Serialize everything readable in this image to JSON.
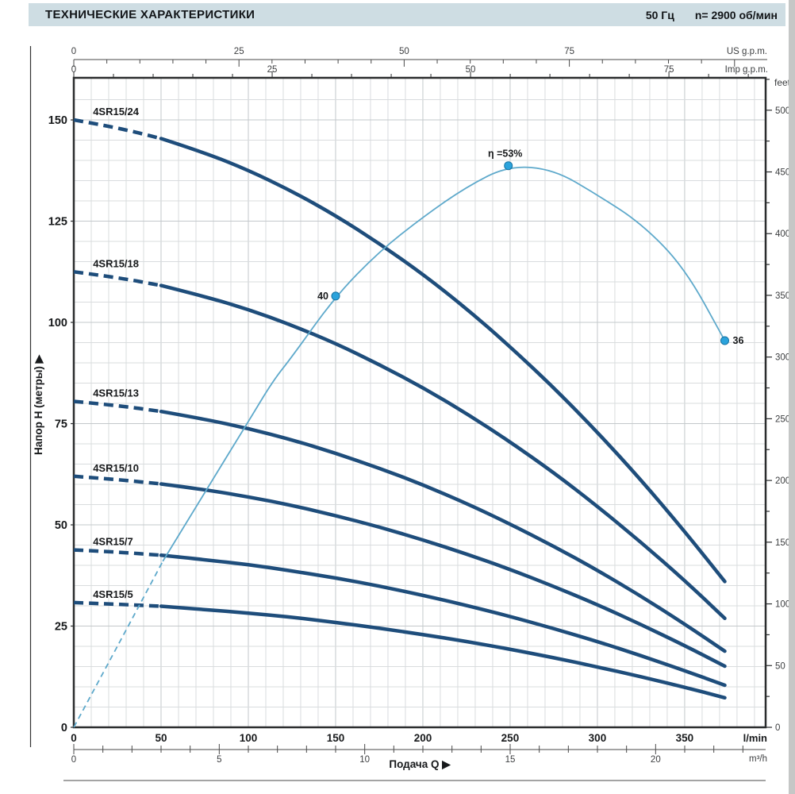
{
  "header": {
    "title": "ТЕХНИЧЕСКИЕ ХАРАКТЕРИСТИКИ",
    "frequency": "50 Гц",
    "speed": "n= 2900 об/мин"
  },
  "chart_data": {
    "type": "line",
    "x_range_lmin": [
      0,
      396.4
    ],
    "y_range_m": [
      0,
      160.4
    ],
    "grid": {
      "x_minor_step": 10,
      "x_major_step": 50,
      "y_minor_step": 5,
      "y_major_step": 25
    },
    "axes": {
      "lmin": {
        "unit": "l/min",
        "ticks": [
          0,
          50,
          100,
          150,
          200,
          250,
          300,
          350
        ]
      },
      "m3h": {
        "unit": "m³/h",
        "ticks": [
          0,
          5,
          10,
          15,
          20
        ],
        "minor_step": 1,
        "lmin_per_unit": 16.6667
      },
      "us_gpm": {
        "unit": "US g.p.m.",
        "ticks": [
          0,
          25,
          50,
          75
        ],
        "minor_step": 5,
        "lmin_per_unit": 3.78541
      },
      "imp_gpm": {
        "unit": "Imp g.p.m.",
        "ticks": [
          0,
          25,
          50,
          75
        ],
        "minor_step": 5,
        "lmin_per_unit": 4.54609
      },
      "meters": {
        "title": "Напор H (метры) ▶",
        "ticks": [
          0,
          25,
          50,
          75,
          100,
          125,
          150
        ]
      },
      "feet": {
        "unit": "feet",
        "ticks": [
          0,
          50,
          100,
          150,
          200,
          250,
          300,
          350,
          400,
          450,
          500
        ],
        "minor_step": 25,
        "m_per_unit": 0.3048
      }
    },
    "x_title": "Подача Q ▶",
    "series": [
      {
        "name": "4SR15/24",
        "dash_until": 50,
        "points": [
          [
            0,
            150
          ],
          [
            25,
            148.1
          ],
          [
            50,
            145.4
          ],
          [
            75,
            141.9
          ],
          [
            100,
            137.6
          ],
          [
            125,
            132.4
          ],
          [
            150,
            126.4
          ],
          [
            175,
            119.5
          ],
          [
            200,
            111.9
          ],
          [
            225,
            103.4
          ],
          [
            250,
            94
          ],
          [
            275,
            83.9
          ],
          [
            300,
            72.9
          ],
          [
            325,
            61.1
          ],
          [
            350,
            48.4
          ],
          [
            373,
            36
          ]
        ]
      },
      {
        "name": "4SR15/18",
        "dash_until": 50,
        "points": [
          [
            0,
            112.5
          ],
          [
            25,
            111.1
          ],
          [
            50,
            109.1
          ],
          [
            75,
            106.4
          ],
          [
            100,
            103.2
          ],
          [
            125,
            99.3
          ],
          [
            150,
            94.8
          ],
          [
            175,
            89.6
          ],
          [
            200,
            83.9
          ],
          [
            225,
            77.5
          ],
          [
            250,
            70.5
          ],
          [
            275,
            62.9
          ],
          [
            300,
            54.6
          ],
          [
            325,
            45.7
          ],
          [
            350,
            36.3
          ],
          [
            373,
            26.9
          ]
        ]
      },
      {
        "name": "4SR15/13",
        "dash_until": 50,
        "points": [
          [
            0,
            80.5
          ],
          [
            25,
            79.5
          ],
          [
            50,
            78
          ],
          [
            75,
            76.1
          ],
          [
            100,
            73.8
          ],
          [
            125,
            71
          ],
          [
            150,
            67.7
          ],
          [
            175,
            64
          ],
          [
            200,
            59.9
          ],
          [
            225,
            55.3
          ],
          [
            250,
            50.2
          ],
          [
            275,
            44.7
          ],
          [
            300,
            38.8
          ],
          [
            325,
            32.4
          ],
          [
            350,
            25.5
          ],
          [
            373,
            18.8
          ]
        ]
      },
      {
        "name": "4SR15/10",
        "dash_until": 50,
        "points": [
          [
            0,
            62
          ],
          [
            25,
            61.2
          ],
          [
            50,
            60.1
          ],
          [
            75,
            58.7
          ],
          [
            100,
            56.9
          ],
          [
            125,
            54.8
          ],
          [
            150,
            52.3
          ],
          [
            175,
            49.5
          ],
          [
            200,
            46.3
          ],
          [
            225,
            42.8
          ],
          [
            250,
            39
          ],
          [
            275,
            34.8
          ],
          [
            300,
            30.3
          ],
          [
            325,
            25.4
          ],
          [
            350,
            20.2
          ],
          [
            373,
            15.1
          ]
        ]
      },
      {
        "name": "4SR15/7",
        "dash_until": 50,
        "points": [
          [
            0,
            43.8
          ],
          [
            25,
            43.3
          ],
          [
            50,
            42.5
          ],
          [
            75,
            41.4
          ],
          [
            100,
            40.2
          ],
          [
            125,
            38.6
          ],
          [
            150,
            36.9
          ],
          [
            175,
            34.9
          ],
          [
            200,
            32.6
          ],
          [
            225,
            30.1
          ],
          [
            250,
            27.4
          ],
          [
            275,
            24.4
          ],
          [
            300,
            21.2
          ],
          [
            325,
            17.7
          ],
          [
            350,
            14
          ],
          [
            373,
            10.4
          ]
        ]
      },
      {
        "name": "4SR15/5",
        "dash_until": 50,
        "points": [
          [
            0,
            30.8
          ],
          [
            25,
            30.4
          ],
          [
            50,
            29.9
          ],
          [
            75,
            29.1
          ],
          [
            100,
            28.2
          ],
          [
            125,
            27.2
          ],
          [
            150,
            25.9
          ],
          [
            175,
            24.5
          ],
          [
            200,
            22.9
          ],
          [
            225,
            21.2
          ],
          [
            250,
            19.3
          ],
          [
            275,
            17.2
          ],
          [
            300,
            14.9
          ],
          [
            325,
            12.5
          ],
          [
            350,
            9.9
          ],
          [
            373,
            7.3
          ]
        ]
      }
    ],
    "efficiency": {
      "name": "efficiency-curve",
      "dash_until": 51,
      "points": [
        [
          0,
          0
        ],
        [
          25,
          20
        ],
        [
          51,
          41
        ],
        [
          75,
          58
        ],
        [
          100,
          75.5
        ],
        [
          114,
          85.5
        ],
        [
          125,
          91.5
        ],
        [
          150,
          106.5
        ],
        [
          175,
          117.5
        ],
        [
          200,
          126
        ],
        [
          225,
          133.5
        ],
        [
          249,
          138.7
        ],
        [
          275,
          137.8
        ],
        [
          300,
          131.5
        ],
        [
          325,
          124.5
        ],
        [
          350,
          113.5
        ],
        [
          373,
          95.5
        ]
      ],
      "markers": [
        {
          "q": 150,
          "h": 106.5,
          "label": "40",
          "side": "left"
        },
        {
          "q": 249,
          "h": 138.7,
          "label": "η =53%",
          "side": "top"
        },
        {
          "q": 373,
          "h": 95.5,
          "label": "36",
          "side": "right"
        }
      ]
    }
  },
  "colors": {
    "header_bg": "#cedde3",
    "header_text": "#121518",
    "curve": "#1e4d7b",
    "efficiency": "#5ea9cb",
    "marker_fill": "#2ba3dc",
    "marker_stroke": "#1673a3",
    "grid_minor": "#d9dcde",
    "grid_major": "#c3c8cb",
    "axis_line": "#2b2d2e",
    "ruler": "#4a4a4a",
    "text_primary": "#17191b",
    "text_secondary": "#3c3e40",
    "page_edge": "#c5c7c6"
  }
}
